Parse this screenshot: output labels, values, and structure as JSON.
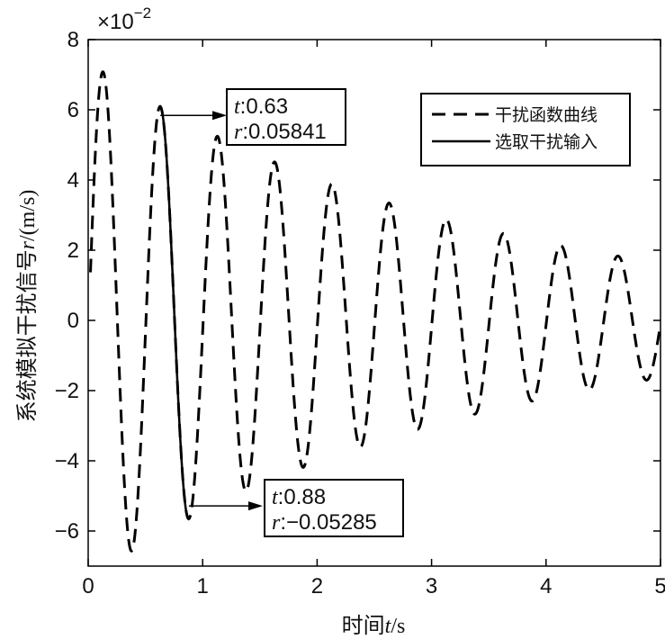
{
  "chart_data": {
    "type": "line",
    "xlabel_prefix": "时间",
    "xlabel_var": "t",
    "xlabel_unit": "/s",
    "ylabel_prefix": "系统模拟干扰信号",
    "ylabel_var": "r",
    "ylabel_unit": "/(m/s)",
    "y_multiplier_base": "×10",
    "y_multiplier_exp": "−2",
    "xlim": [
      0,
      5
    ],
    "ylim": [
      -0.07,
      0.08
    ],
    "x_ticks": [
      0,
      1,
      2,
      3,
      4,
      5
    ],
    "x_tick_labels": [
      "0",
      "1",
      "2",
      "3",
      "4",
      "5"
    ],
    "y_ticks": [
      -0.06,
      -0.04,
      -0.02,
      0,
      0.02,
      0.04,
      0.06,
      0.08
    ],
    "y_tick_labels": [
      "−6",
      "−4",
      "−2",
      "0",
      "2",
      "4",
      "6",
      "8"
    ],
    "grid": false,
    "legend_position": "top-right",
    "series": [
      {
        "name": "干扰函数曲线",
        "style": "dashed",
        "color": "#000000",
        "function": "damped-sine",
        "x_range": [
          0,
          5
        ],
        "x": [
          0,
          0.13,
          0.38,
          0.63,
          0.88,
          1.13,
          1.38,
          1.63,
          1.88,
          2.13,
          2.38,
          2.63,
          2.88,
          3.13,
          3.38,
          3.63,
          3.88,
          4.13,
          4.38,
          4.63,
          4.88,
          5.0
        ],
        "y": [
          0.012,
          0.07,
          -0.063,
          0.05841,
          -0.05285,
          0.047,
          -0.043,
          0.039,
          -0.035,
          0.031,
          -0.028,
          0.026,
          -0.023,
          0.021,
          -0.019,
          0.017,
          -0.015,
          0.014,
          -0.013,
          0.0115,
          -0.0105,
          -0.003
        ]
      },
      {
        "name": "选取干扰输入",
        "style": "solid",
        "color": "#000000",
        "x_range": [
          0.63,
          0.88
        ]
      }
    ],
    "annotations": [
      {
        "t_label": "t",
        "t_value": ":0.63",
        "r_label": "r",
        "r_value": ":0.05841",
        "x": 0.63,
        "y": 0.05841
      },
      {
        "t_label": "t",
        "t_value": ":0.88",
        "r_label": "r",
        "r_value": ":−0.05285",
        "x": 0.88,
        "y": -0.05285
      }
    ]
  }
}
